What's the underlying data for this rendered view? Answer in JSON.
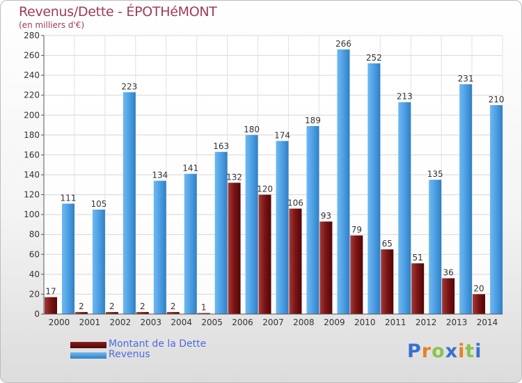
{
  "header": {
    "title": "Revenus/Dette - ÉPOTHéMONT",
    "subtitle": "(en milliers d'€)"
  },
  "legend": {
    "items": [
      {
        "label": "Montant de la Dette",
        "color": "#6b0d0d"
      },
      {
        "label": "Revenus",
        "color": "#4d9fe3"
      }
    ]
  },
  "logo": {
    "letters": [
      {
        "ch": "P",
        "color": "#3a6fd0"
      },
      {
        "ch": "r",
        "color": "#e6821f"
      },
      {
        "ch": "o",
        "color": "#8bc34a"
      },
      {
        "ch": "x",
        "color": "#3a6fd0"
      },
      {
        "ch": "i",
        "color": "#e6821f"
      },
      {
        "ch": "t",
        "color": "#8bc34a"
      },
      {
        "ch": "i",
        "color": "#3a6fd0"
      }
    ]
  },
  "chart_data": {
    "type": "bar",
    "title": "Revenus/Dette - ÉPOTHéMONT",
    "ylabel": "(en milliers d'€)",
    "xlabel": "",
    "ylim": [
      0,
      280
    ],
    "yticks": [
      0,
      20,
      40,
      60,
      80,
      100,
      120,
      140,
      160,
      180,
      200,
      220,
      240,
      260,
      280
    ],
    "grid": true,
    "categories": [
      "2000",
      "2001",
      "2002",
      "2003",
      "2004",
      "2005",
      "2006",
      "2007",
      "2008",
      "2009",
      "2010",
      "2011",
      "2012",
      "2013",
      "2014"
    ],
    "series": [
      {
        "name": "Montant de la Dette",
        "color": "#6b0d0d",
        "values": [
          17,
          2,
          2,
          2,
          2,
          1,
          132,
          120,
          106,
          93,
          79,
          65,
          51,
          36,
          20
        ]
      },
      {
        "name": "Revenus",
        "color": "#4d9fe3",
        "values": [
          111,
          105,
          223,
          134,
          141,
          163,
          180,
          174,
          189,
          266,
          252,
          213,
          135,
          231,
          210
        ]
      }
    ]
  }
}
